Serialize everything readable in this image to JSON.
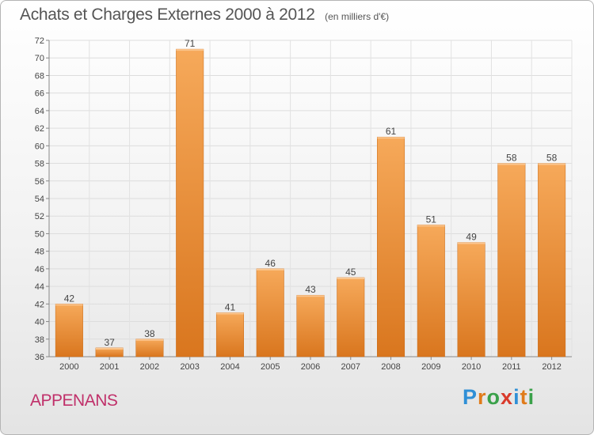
{
  "header": {
    "title": "Achats et Charges Externes 2000 à 2012",
    "subtitle": "(en milliers d'€)"
  },
  "footer": {
    "commune": "APPENANS",
    "logo_letters": [
      "P",
      "r",
      "o",
      "x",
      "i",
      "t",
      "i"
    ],
    "logo_colors": [
      "#2f8fd6",
      "#e07b1a",
      "#3aa14a",
      "#d93a2b",
      "#2f8fd6",
      "#e07b1a",
      "#3aa14a"
    ]
  },
  "chart_data": {
    "type": "bar",
    "title": "Achats et Charges Externes 2000 à 2012",
    "subtitle": "(en milliers d'€)",
    "categories": [
      "2000",
      "2001",
      "2002",
      "2003",
      "2004",
      "2005",
      "2006",
      "2007",
      "2008",
      "2009",
      "2010",
      "2011",
      "2012"
    ],
    "values": [
      42,
      37,
      38,
      71,
      41,
      46,
      43,
      45,
      61,
      51,
      49,
      58,
      58
    ],
    "ylim": [
      36,
      72
    ],
    "yticks": [
      36,
      38,
      40,
      42,
      44,
      46,
      48,
      50,
      52,
      54,
      56,
      58,
      60,
      62,
      64,
      66,
      68,
      70,
      72
    ],
    "grid": true,
    "data_labels": true,
    "bar_color": "#f0923a"
  }
}
